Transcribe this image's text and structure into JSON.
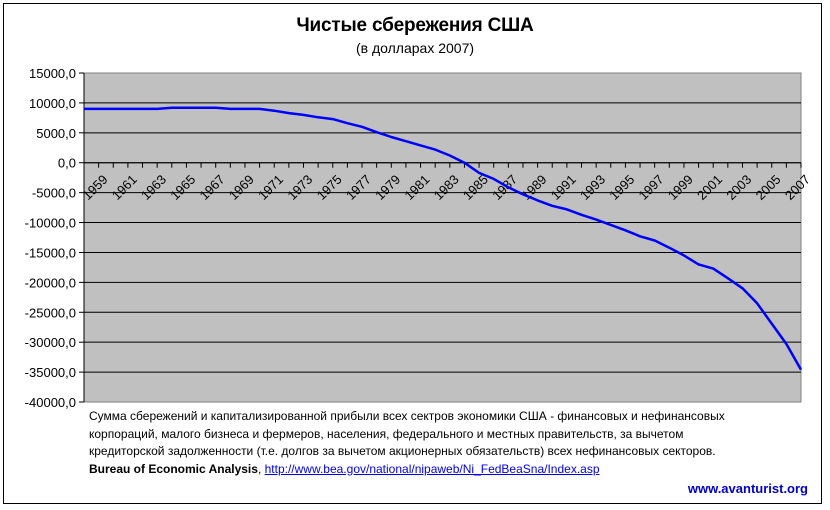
{
  "chart_data": {
    "type": "line",
    "title": "Чистые сбережения США",
    "subtitle": "(в долларах 2007)",
    "xlabel": "",
    "ylabel": "",
    "ylim": [
      -40000,
      15000
    ],
    "yticks": [
      15000,
      10000,
      5000,
      0,
      -5000,
      -10000,
      -15000,
      -20000,
      -25000,
      -30000,
      -35000,
      -40000
    ],
    "ytick_labels": [
      "15000,0",
      "10000,0",
      "5000,0",
      "0,0",
      "-5000,0",
      "-10000,0",
      "-15000,0",
      "-20000,0",
      "-25000,0",
      "-30000,0",
      "-35000,0",
      "-40000,0"
    ],
    "xtick_labels": [
      "1959",
      "1961",
      "1963",
      "1965",
      "1967",
      "1969",
      "1971",
      "1973",
      "1975",
      "1977",
      "1979",
      "1981",
      "1983",
      "1985",
      "1987",
      "1989",
      "1991",
      "1993",
      "1995",
      "1997",
      "1999",
      "2001",
      "2003",
      "2005",
      "2007"
    ],
    "grid": true,
    "legend": null,
    "plot_background": "#c0c0c0",
    "series": [
      {
        "name": "Чистые сбережения",
        "color": "#0000ff",
        "x": [
          1959,
          1960,
          1961,
          1962,
          1963,
          1964,
          1965,
          1966,
          1967,
          1968,
          1969,
          1970,
          1971,
          1972,
          1973,
          1974,
          1975,
          1976,
          1977,
          1978,
          1979,
          1980,
          1981,
          1982,
          1983,
          1984,
          1985,
          1986,
          1987,
          1988,
          1989,
          1990,
          1991,
          1992,
          1993,
          1994,
          1995,
          1996,
          1997,
          1998,
          1999,
          2000,
          2001,
          2002,
          2003,
          2004,
          2005,
          2006,
          2007,
          2008
        ],
        "values": [
          9000,
          9000,
          9000,
          9000,
          9000,
          9000,
          9200,
          9200,
          9200,
          9200,
          9000,
          9000,
          9000,
          8700,
          8300,
          8000,
          7600,
          7300,
          6600,
          6000,
          5100,
          4300,
          3600,
          2900,
          2200,
          1200,
          0,
          -1700,
          -2700,
          -4100,
          -5300,
          -6300,
          -7200,
          -7800,
          -8700,
          -9500,
          -10400,
          -11300,
          -12300,
          -13000,
          -14200,
          -15500,
          -17000,
          -17700,
          -19300,
          -21000,
          -23500,
          -26900,
          -30300,
          -34600
        ]
      }
    ]
  },
  "note": {
    "line1": "Сумма сбережений и капитализированной прибыли всех сектров экономики США - финансовых и нефинансовых",
    "line2": "корпораций, малого бизнеса и фермеров, населения, федерального и местных правительств, за вычетом",
    "line3": "кредиторской задолженности (т.е. долгов за вычетом акционерных обязательств) всех нефинансовых секторов.",
    "source_name": "Bureau of Economic Analysis",
    "source_sep": ", ",
    "source_url": "http://www.bea.gov/national/nipaweb/Ni_FedBeaSna/Index.asp"
  },
  "brand": "www.avanturist.org"
}
